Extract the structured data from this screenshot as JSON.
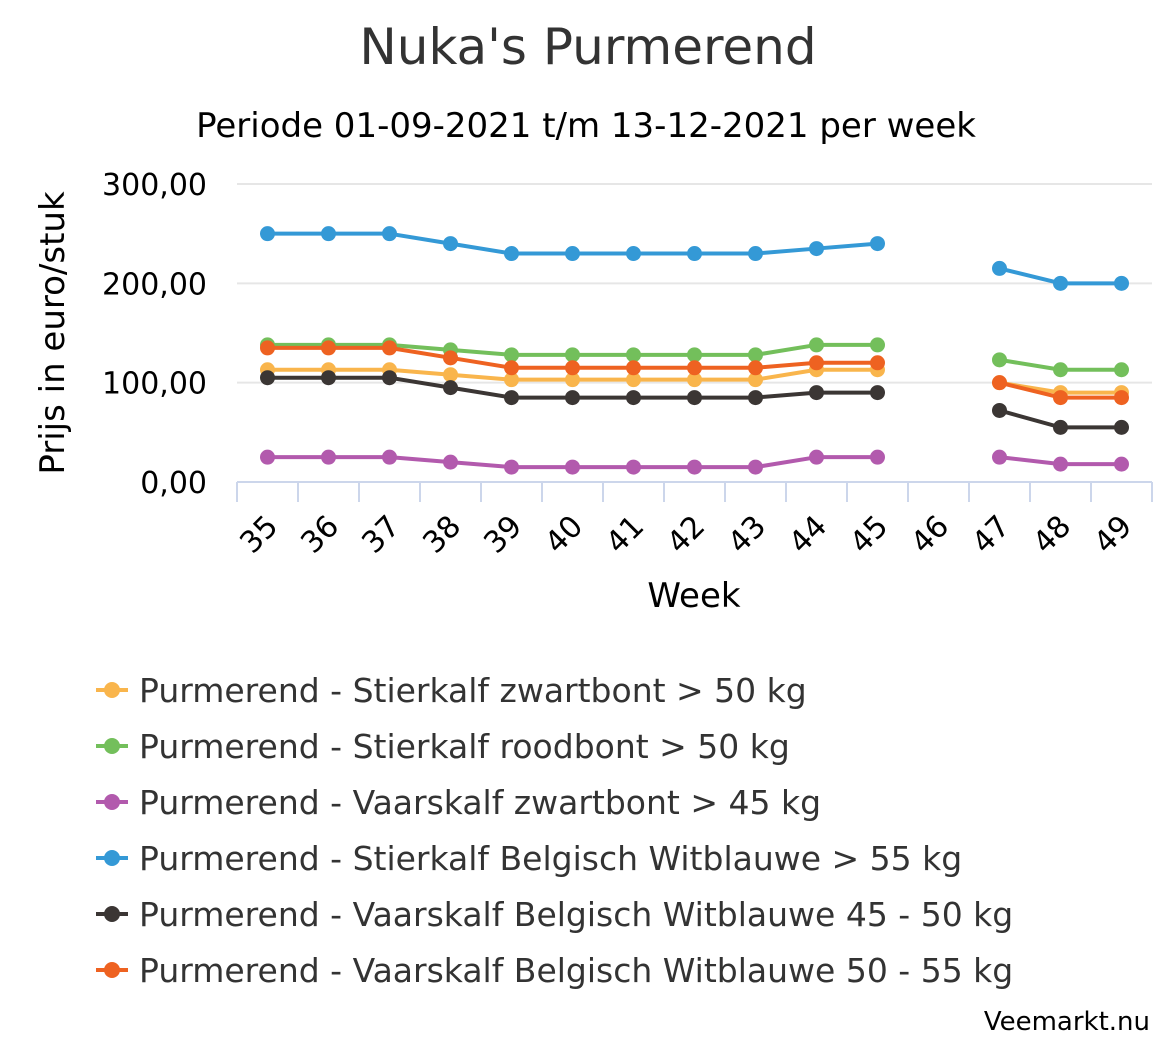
{
  "chart_data": {
    "type": "line",
    "title": "Nuka's Purmerend",
    "subtitle": "Periode 01-09-2021 t/m 13-12-2021 per week",
    "xlabel": "Week",
    "ylabel": "Prijs in euro/stuk",
    "categories": [
      "35",
      "36",
      "37",
      "38",
      "39",
      "40",
      "41",
      "42",
      "43",
      "44",
      "45",
      "46",
      "47",
      "48",
      "49"
    ],
    "ylim": [
      0,
      300
    ],
    "yticks": [
      0,
      100,
      200,
      300
    ],
    "ytick_labels": [
      "0,00",
      "100,00",
      "200,00",
      "300,00"
    ],
    "grid": true,
    "legend_position": "bottom",
    "series": [
      {
        "name": "Purmerend - Stierkalf zwartbont > 50 kg",
        "color": "#F9B54C",
        "values": [
          113,
          113,
          113,
          108,
          103,
          103,
          103,
          103,
          103,
          113,
          113,
          null,
          100,
          90,
          90
        ]
      },
      {
        "name": "Purmerend - Stierkalf roodbont > 50 kg",
        "color": "#73BF5B",
        "values": [
          138,
          138,
          138,
          133,
          128,
          128,
          128,
          128,
          128,
          138,
          138,
          null,
          123,
          113,
          113
        ]
      },
      {
        "name": "Purmerend - Vaarskalf zwartbont > 45 kg",
        "color": "#B25AAD",
        "values": [
          25,
          25,
          25,
          20,
          15,
          15,
          15,
          15,
          15,
          25,
          25,
          null,
          25,
          18,
          18
        ]
      },
      {
        "name": "Purmerend - Stierkalf Belgisch Witblauwe > 55 kg",
        "color": "#3499D6",
        "values": [
          250,
          250,
          250,
          240,
          230,
          230,
          230,
          230,
          230,
          235,
          240,
          null,
          215,
          200,
          200
        ]
      },
      {
        "name": "Purmerend - Vaarskalf Belgisch Witblauwe 45 - 50 kg",
        "color": "#3B3634",
        "values": [
          105,
          105,
          105,
          95,
          85,
          85,
          85,
          85,
          85,
          90,
          90,
          null,
          72,
          55,
          55
        ]
      },
      {
        "name": "Purmerend - Vaarskalf Belgisch Witblauwe 50 - 55 kg",
        "color": "#EE6221",
        "values": [
          135,
          135,
          135,
          125,
          115,
          115,
          115,
          115,
          115,
          120,
          120,
          null,
          100,
          85,
          85
        ]
      }
    ],
    "credit": "Veemarkt.nu"
  }
}
